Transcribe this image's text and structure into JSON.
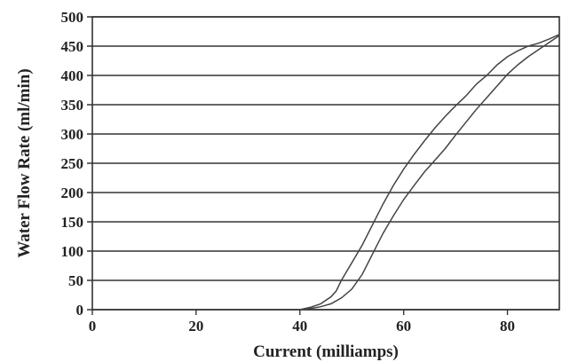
{
  "chart_data": {
    "type": "line",
    "title": "",
    "xlabel": "Current (milliamps)",
    "ylabel": "Water Flow Rate (ml/min)",
    "xlim": [
      0,
      90
    ],
    "ylim": [
      0,
      500
    ],
    "xticks": [
      0,
      20,
      40,
      60,
      80
    ],
    "yticks": [
      0,
      50,
      100,
      150,
      200,
      250,
      300,
      350,
      400,
      450,
      500
    ],
    "grid": "horizontal",
    "legend": "none",
    "series": [
      {
        "x": [
          40,
          42,
          44,
          46,
          47,
          48,
          50,
          52,
          54,
          56,
          58,
          60,
          62,
          64,
          66,
          68,
          70,
          72,
          74,
          76,
          78,
          80,
          82,
          84,
          86,
          88,
          90
        ],
        "y": [
          0,
          4,
          10,
          22,
          32,
          50,
          80,
          110,
          145,
          180,
          212,
          240,
          265,
          288,
          310,
          330,
          348,
          365,
          385,
          400,
          418,
          432,
          442,
          450,
          455,
          462,
          470
        ]
      },
      {
        "x": [
          40,
          42,
          44,
          46,
          48,
          50,
          52,
          54,
          56,
          58,
          60,
          62,
          64,
          66,
          68,
          70,
          72,
          74,
          76,
          78,
          80,
          82,
          84,
          86,
          88,
          90
        ],
        "y": [
          0,
          2,
          5,
          10,
          20,
          35,
          60,
          95,
          130,
          160,
          188,
          212,
          235,
          255,
          275,
          298,
          320,
          342,
          362,
          382,
          402,
          418,
          432,
          444,
          456,
          468
        ]
      }
    ]
  }
}
